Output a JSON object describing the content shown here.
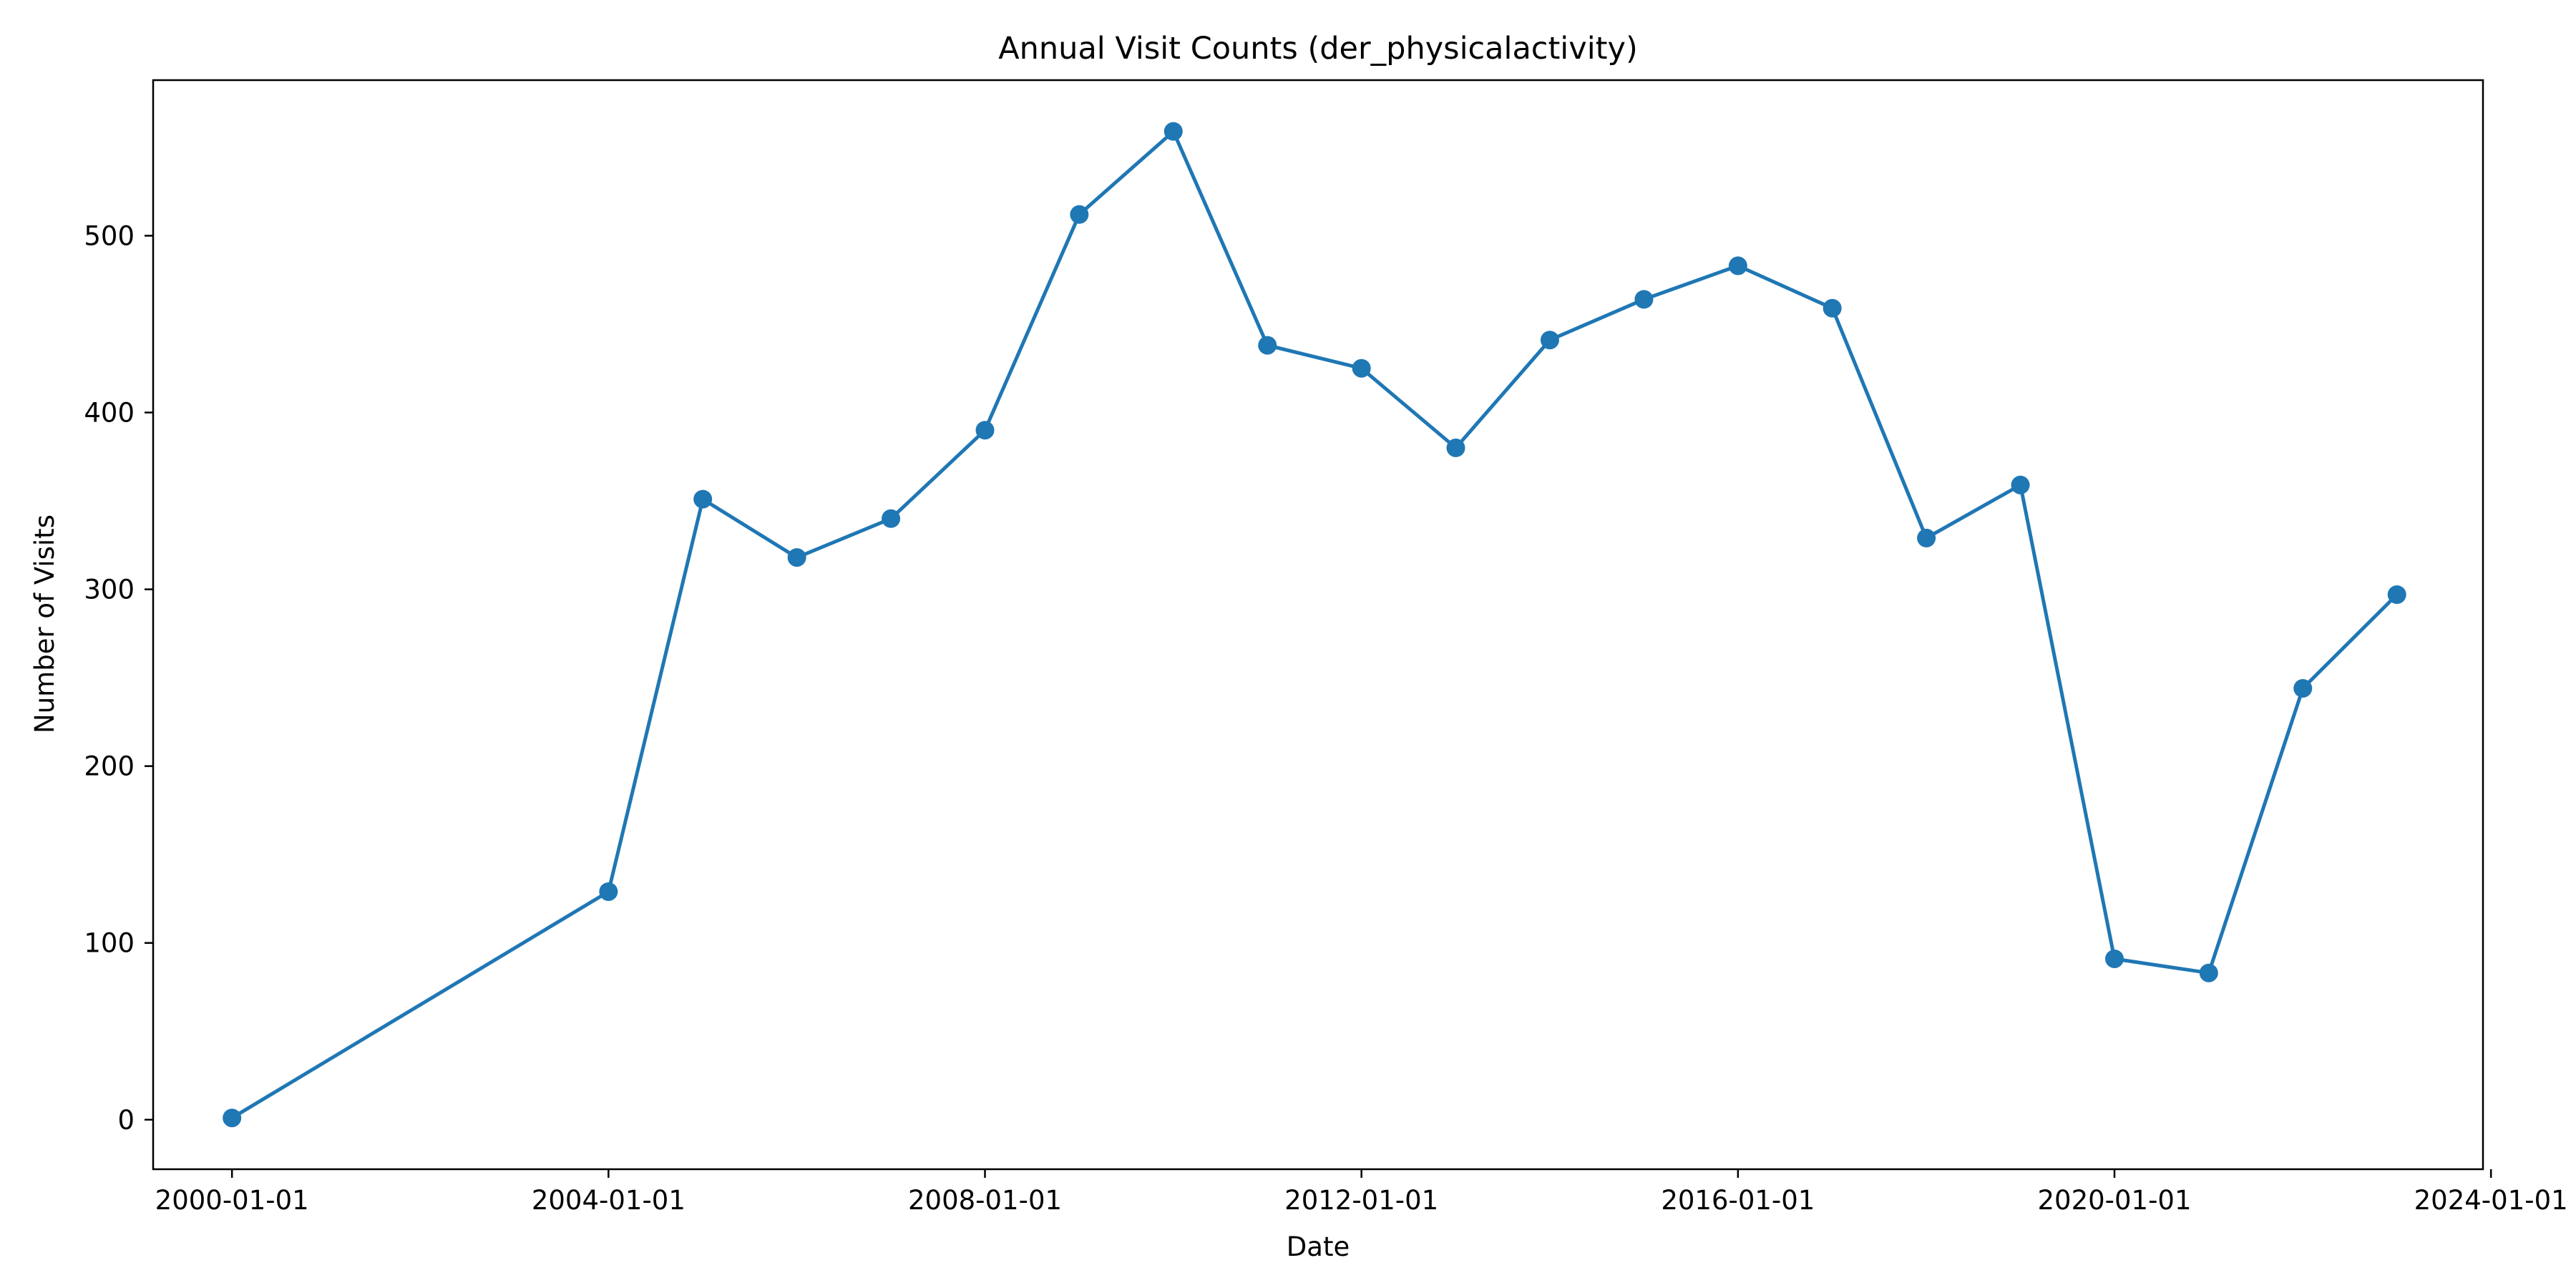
{
  "chart_data": {
    "type": "line",
    "title": "Annual Visit Counts (der_physicalactivity)",
    "xlabel": "Date",
    "ylabel": "Number of Visits",
    "x_axis_type": "date",
    "xlim": [
      "1999-03-01",
      "2023-12-01"
    ],
    "ylim": [
      -28,
      588
    ],
    "x_ticks": [
      "2000-01-01",
      "2004-01-01",
      "2008-01-01",
      "2012-01-01",
      "2016-01-01",
      "2020-01-01",
      "2024-01-01"
    ],
    "y_ticks": [
      0,
      100,
      200,
      300,
      400,
      500
    ],
    "grid": false,
    "legend": "none",
    "colors": {
      "series": "#1f77b4",
      "axes": "#000000",
      "background": "#ffffff"
    },
    "marker": "circle",
    "series": [
      {
        "x": [
          "2000-01-01",
          "2004-01-01",
          "2005-01-01",
          "2006-01-01",
          "2007-01-01",
          "2008-01-01",
          "2009-01-01",
          "2010-01-01",
          "2011-01-01",
          "2012-01-01",
          "2013-01-01",
          "2014-01-01",
          "2015-01-01",
          "2016-01-01",
          "2017-01-01",
          "2018-01-01",
          "2019-01-01",
          "2020-01-01",
          "2021-01-01",
          "2022-01-01",
          "2023-01-01"
        ],
        "values": [
          1,
          129,
          351,
          318,
          340,
          390,
          512,
          559,
          438,
          425,
          380,
          441,
          464,
          483,
          459,
          329,
          359,
          91,
          83,
          244,
          297
        ]
      }
    ]
  }
}
